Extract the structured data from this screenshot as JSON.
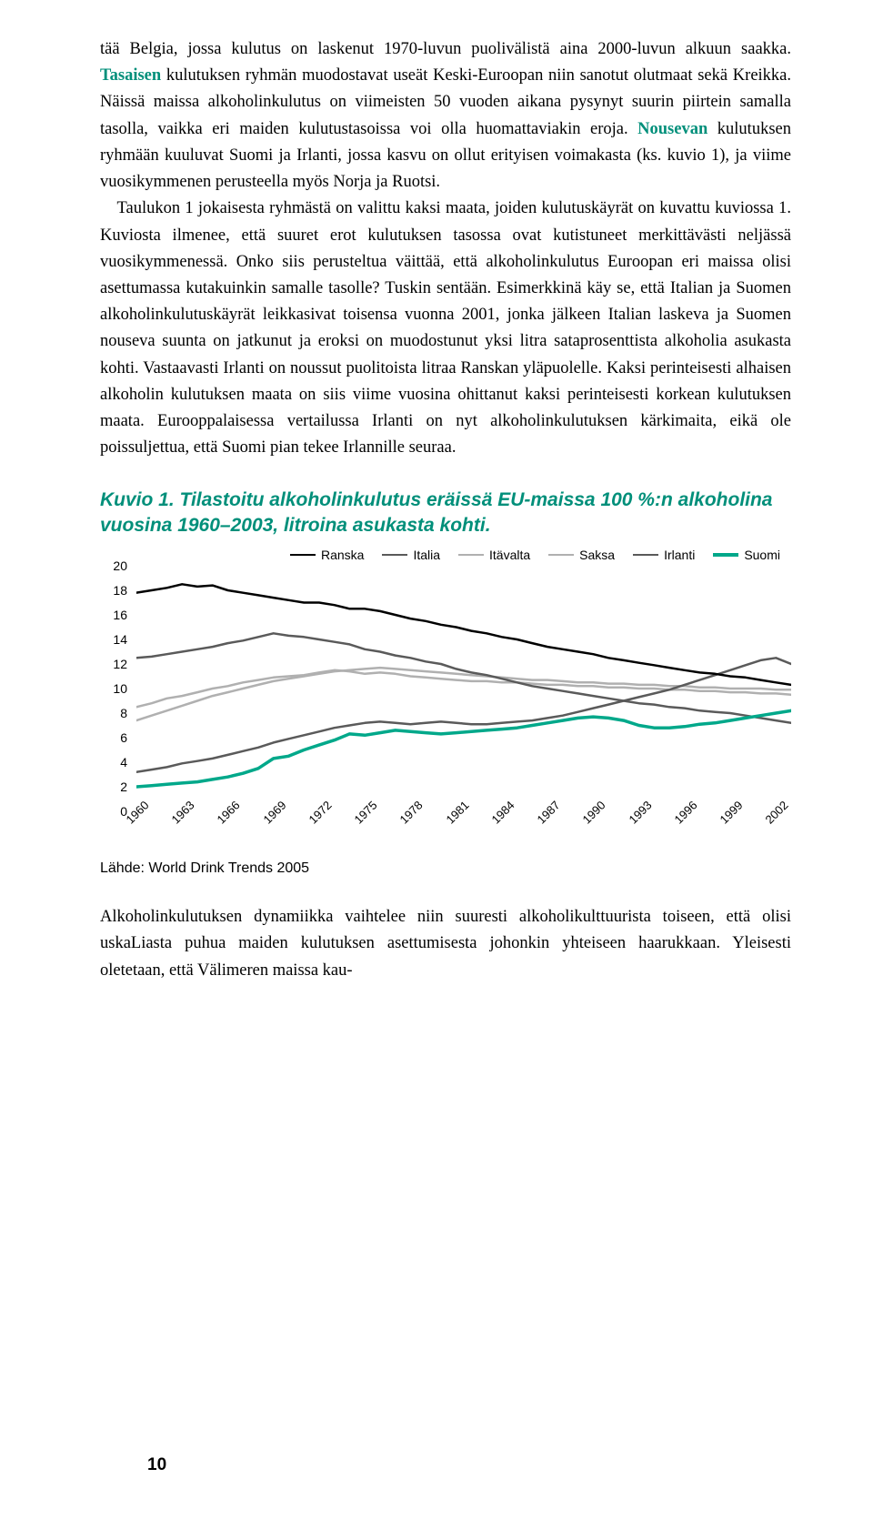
{
  "paragraphs": {
    "p1a": "tää Belgia, jossa kulutus on laskenut 1970-luvun puolivälistä aina 2000-luvun alkuun saakka. ",
    "p1_hl": "Tasaisen",
    "p1b": " kulutuksen ryhmän muodostavat useät Keski-Euroopan niin sanotut olutmaat sekä Kreikka. Näissä maissa alkoholinkulutus on viimeisten 50 vuoden aikana pysynyt suurin piirtein samalla tasolla, vaikka eri maiden kulutustasoissa voi olla huomattaviakin eroja. ",
    "p1_hl2": "Nousevan",
    "p1c": " kulutuksen ryhmään kuuluvat Suomi ja Irlanti, jossa kasvu on ollut erityisen voimakasta (ks. kuvio 1), ja viime vuosikymmenen perusteella myös Norja ja Ruotsi.",
    "p2": " Taulukon 1 jokaisesta ryhmästä on valittu kaksi maata, joiden kulutuskäyrät on kuvattu kuviossa 1. Kuviosta ilmenee, että suuret erot kulutuksen tasossa ovat kutistuneet merkittävästi neljässä vuosikymmenessä. Onko siis perusteltua väittää, että alkoholinkulutus Euroopan eri maissa olisi asettumassa kutakuinkin samalle tasolle? Tuskin sentään. Esimerkkinä käy se, että Italian ja Suomen alkoholinkulutuskäyrät leikkasivat toisensa vuonna 2001, jonka jälkeen Italian laskeva ja Suomen nouseva suunta on jatkunut ja eroksi on muodostunut yksi litra sataprosenttista alkoholia asukasta kohti. Vastaavasti Irlanti on noussut puolitoista litraa Ranskan yläpuolelle. Kaksi perinteisesti alhaisen alkoholin kulutuksen maata on siis viime vuosina ohittanut kaksi perinteisesti korkean kulutuksen maata. Eurooppalaisessa vertailussa Irlanti on nyt alkoholinkulutuksen kärkimaita, eikä ole poissuljettua, että Suomi pian tekee Irlannille seuraa.",
    "p3": "Alkoholinkulutuksen dynamiikka vaihtelee niin suuresti alkoholikulttuurista toiseen, että olisi uskaLiasta puhua maiden kulutuksen asettumisesta johonkin yhteiseen haarukkaan. Yleisesti oletetaan, että Välimeren maissa kau-"
  },
  "chart": {
    "title": "Kuvio 1. Tilastoitu alkoholinkulutus eräissä EU-maissa 100 %:n alkoholina vuosina 1960–2003, litroina asukasta kohti.",
    "source": "Lähde: World Drink Trends 2005",
    "legend": [
      {
        "label": "Ranska",
        "color": "#000000",
        "width": 2.5
      },
      {
        "label": "Italia",
        "color": "#5a5a5a",
        "width": 2.5
      },
      {
        "label": "Itävalta",
        "color": "#b0b0b0",
        "width": 2.5
      },
      {
        "label": "Saksa",
        "color": "#b0b0b0",
        "width": 2.5
      },
      {
        "label": "Irlanti",
        "color": "#5a5a5a",
        "width": 2.5
      },
      {
        "label": "Suomi",
        "color": "#00a88a",
        "width": 3.5
      }
    ],
    "ylim": [
      0,
      20
    ],
    "ytick_step": 2,
    "yticks": [
      "0",
      "2",
      "4",
      "6",
      "8",
      "10",
      "12",
      "14",
      "16",
      "18",
      "20"
    ],
    "xlim": [
      1960,
      2003
    ],
    "xticks": [
      "1960",
      "1963",
      "1966",
      "1969",
      "1972",
      "1975",
      "1978",
      "1981",
      "1984",
      "1987",
      "1990",
      "1993",
      "1996",
      "1999",
      "2002"
    ],
    "background_color": "#ffffff",
    "grid": false,
    "series": {
      "Ranska": {
        "color": "#000000",
        "width": 2.5,
        "values": [
          17.8,
          18.0,
          18.2,
          18.5,
          18.3,
          18.4,
          18.0,
          17.8,
          17.6,
          17.4,
          17.2,
          17.0,
          17.0,
          16.8,
          16.5,
          16.5,
          16.3,
          16.0,
          15.7,
          15.5,
          15.2,
          15.0,
          14.7,
          14.5,
          14.2,
          14.0,
          13.7,
          13.4,
          13.2,
          13.0,
          12.8,
          12.5,
          12.3,
          12.1,
          11.9,
          11.7,
          11.5,
          11.3,
          11.2,
          11.0,
          10.9,
          10.7,
          10.5,
          10.3
        ]
      },
      "Italia": {
        "color": "#5a5a5a",
        "width": 2.5,
        "values": [
          12.5,
          12.6,
          12.8,
          13.0,
          13.2,
          13.4,
          13.7,
          13.9,
          14.2,
          14.5,
          14.3,
          14.2,
          14.0,
          13.8,
          13.6,
          13.2,
          13.0,
          12.7,
          12.5,
          12.2,
          12.0,
          11.6,
          11.3,
          11.1,
          10.8,
          10.5,
          10.2,
          10.0,
          9.8,
          9.6,
          9.4,
          9.2,
          9.0,
          8.8,
          8.7,
          8.5,
          8.4,
          8.2,
          8.1,
          8.0,
          7.8,
          7.6,
          7.4,
          7.2
        ]
      },
      "Itävalta": {
        "color": "#b0b0b0",
        "width": 2.5,
        "values": [
          8.5,
          8.8,
          9.2,
          9.4,
          9.7,
          10.0,
          10.2,
          10.5,
          10.7,
          10.9,
          11.0,
          11.1,
          11.3,
          11.5,
          11.4,
          11.2,
          11.3,
          11.2,
          11.0,
          10.9,
          10.8,
          10.7,
          10.6,
          10.6,
          10.5,
          10.5,
          10.4,
          10.3,
          10.3,
          10.2,
          10.2,
          10.1,
          10.1,
          10.0,
          10.0,
          9.9,
          9.9,
          9.8,
          9.8,
          9.7,
          9.7,
          9.6,
          9.6,
          9.5
        ]
      },
      "Saksa": {
        "color": "#b0b0b0",
        "width": 2.5,
        "values": [
          7.4,
          7.8,
          8.2,
          8.6,
          9.0,
          9.4,
          9.7,
          10.0,
          10.3,
          10.6,
          10.8,
          11.0,
          11.2,
          11.4,
          11.5,
          11.6,
          11.7,
          11.6,
          11.5,
          11.4,
          11.3,
          11.2,
          11.1,
          11.0,
          10.9,
          10.8,
          10.7,
          10.7,
          10.6,
          10.5,
          10.5,
          10.4,
          10.4,
          10.3,
          10.3,
          10.2,
          10.2,
          10.1,
          10.1,
          10.0,
          10.0,
          10.0,
          9.9,
          9.9
        ]
      },
      "Irlanti": {
        "color": "#5a5a5a",
        "width": 2.5,
        "values": [
          3.2,
          3.4,
          3.6,
          3.9,
          4.1,
          4.3,
          4.6,
          4.9,
          5.2,
          5.6,
          5.9,
          6.2,
          6.5,
          6.8,
          7.0,
          7.2,
          7.3,
          7.2,
          7.1,
          7.2,
          7.3,
          7.2,
          7.1,
          7.1,
          7.2,
          7.3,
          7.4,
          7.6,
          7.8,
          8.1,
          8.4,
          8.7,
          9.0,
          9.3,
          9.6,
          9.9,
          10.3,
          10.7,
          11.1,
          11.5,
          11.9,
          12.3,
          12.5,
          12.0
        ]
      },
      "Suomi": {
        "color": "#00a88a",
        "width": 3.5,
        "values": [
          2.0,
          2.1,
          2.2,
          2.3,
          2.4,
          2.6,
          2.8,
          3.1,
          3.5,
          4.3,
          4.5,
          5.0,
          5.4,
          5.8,
          6.3,
          6.2,
          6.4,
          6.6,
          6.5,
          6.4,
          6.3,
          6.4,
          6.5,
          6.6,
          6.7,
          6.8,
          7.0,
          7.2,
          7.4,
          7.6,
          7.7,
          7.6,
          7.4,
          7.0,
          6.8,
          6.8,
          6.9,
          7.1,
          7.2,
          7.4,
          7.6,
          7.8,
          8.0,
          8.2
        ]
      }
    }
  },
  "page_number": "10"
}
